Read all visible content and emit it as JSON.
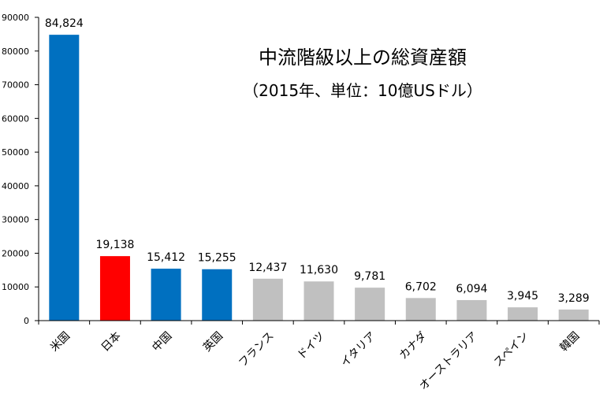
{
  "chart_data": {
    "type": "bar",
    "title": "中流階級以上の総資産額",
    "subtitle": "（2015年、単位：10億USドル）",
    "xlabel": "",
    "ylabel": "",
    "ylim": [
      0,
      90000
    ],
    "yticks": [
      "0",
      "10000",
      "20000",
      "30000",
      "40000",
      "50000",
      "60000",
      "70000",
      "80000",
      "90000"
    ],
    "categories": [
      "米国",
      "日本",
      "中国",
      "英国",
      "フランス",
      "ドイツ",
      "イタリア",
      "カナダ",
      "オーストラリア",
      "スペイン",
      "韓国"
    ],
    "values": [
      84824,
      19138,
      15412,
      15255,
      12437,
      11630,
      9781,
      6702,
      6094,
      3945,
      3289
    ],
    "value_labels": [
      "84,824",
      "19,138",
      "15,412",
      "15,255",
      "12,437",
      "11,630",
      "9,781",
      "6,702",
      "6,094",
      "3,945",
      "3,289"
    ],
    "bar_colors": [
      "#0070c0",
      "#ff0000",
      "#0070c0",
      "#0070c0",
      "#c0c0c0",
      "#c0c0c0",
      "#c0c0c0",
      "#c0c0c0",
      "#c0c0c0",
      "#c0c0c0",
      "#c0c0c0"
    ],
    "grid": false,
    "legend": "none"
  }
}
